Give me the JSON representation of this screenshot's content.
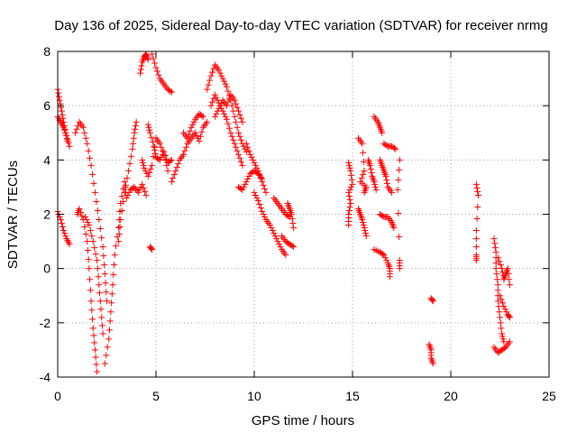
{
  "chart_data": {
    "type": "scatter",
    "title": "Day 136 of 2025, Sidereal Day-to-day VTEC variation (SDTVAR) for receiver nrmg",
    "xlabel": "GPS time / hours",
    "ylabel": "SDTVAR / TECUs",
    "xlim": [
      0,
      25
    ],
    "ylim": [
      -4,
      8
    ],
    "xticks": [
      "0",
      "5",
      "10",
      "15",
      "20",
      "25"
    ],
    "yticks": [
      "-4",
      "-2",
      "0",
      "2",
      "4",
      "6",
      "8"
    ],
    "grid": true,
    "marker": "+",
    "series": [
      {
        "name": "SDTVAR",
        "color": "#ff0000",
        "segments": [
          [
            [
              0.0,
              6.6
            ],
            [
              0.1,
              6.2
            ],
            [
              0.2,
              5.8
            ],
            [
              0.3,
              5.4
            ],
            [
              0.4,
              5.0
            ],
            [
              0.5,
              4.7
            ]
          ],
          [
            [
              0.0,
              5.6
            ],
            [
              0.15,
              5.4
            ],
            [
              0.3,
              5.2
            ],
            [
              0.45,
              4.9
            ],
            [
              0.6,
              4.5
            ]
          ],
          [
            [
              0.0,
              2.1
            ],
            [
              0.15,
              1.8
            ],
            [
              0.3,
              1.4
            ],
            [
              0.45,
              1.1
            ],
            [
              0.6,
              0.9
            ]
          ],
          [
            [
              0.9,
              5.0
            ],
            [
              1.1,
              5.4
            ],
            [
              1.3,
              5.2
            ],
            [
              1.5,
              4.6
            ],
            [
              1.7,
              3.8
            ],
            [
              1.9,
              2.8
            ],
            [
              2.1,
              1.8
            ],
            [
              2.3,
              0.8
            ],
            [
              2.4,
              -0.2
            ],
            [
              2.5,
              -1.2
            ]
          ],
          [
            [
              1.0,
              2.0
            ],
            [
              1.1,
              2.2
            ],
            [
              1.3,
              1.8
            ],
            [
              1.5,
              1.0
            ],
            [
              1.6,
              0.0
            ],
            [
              1.7,
              -1.2
            ],
            [
              1.8,
              -2.2
            ],
            [
              1.9,
              -3.0
            ],
            [
              2.0,
              -3.8
            ]
          ],
          [
            [
              1.4,
              1.9
            ],
            [
              1.6,
              1.6
            ],
            [
              1.8,
              1.0
            ],
            [
              2.0,
              0.3
            ],
            [
              2.1,
              -0.6
            ],
            [
              2.2,
              -1.5
            ],
            [
              2.3,
              -2.4
            ]
          ],
          [
            [
              2.4,
              -3.5
            ],
            [
              2.6,
              -2.6
            ],
            [
              2.7,
              -1.6
            ],
            [
              2.8,
              -0.6
            ],
            [
              2.9,
              0.5
            ],
            [
              3.1,
              1.5
            ],
            [
              3.2,
              2.4
            ],
            [
              3.4,
              3.2
            ],
            [
              3.5,
              2.6
            ],
            [
              3.7,
              2.9
            ],
            [
              3.9,
              3.0
            ],
            [
              4.1,
              2.8
            ],
            [
              4.3,
              3.1
            ],
            [
              4.5,
              2.7
            ]
          ],
          [
            [
              3.1,
              1.0
            ],
            [
              3.2,
              1.8
            ],
            [
              3.4,
              2.8
            ],
            [
              3.6,
              3.6
            ],
            [
              3.8,
              4.4
            ],
            [
              3.9,
              5.0
            ],
            [
              4.0,
              5.4
            ]
          ],
          [
            [
              4.2,
              7.2
            ],
            [
              4.3,
              7.6
            ],
            [
              4.4,
              7.8
            ],
            [
              4.5,
              7.9
            ],
            [
              4.6,
              7.7
            ]
          ],
          [
            [
              4.8,
              7.9
            ],
            [
              5.0,
              7.4
            ],
            [
              5.2,
              7.0
            ],
            [
              5.4,
              6.8
            ],
            [
              5.6,
              6.6
            ],
            [
              5.8,
              6.5
            ]
          ],
          [
            [
              4.6,
              5.3
            ],
            [
              4.7,
              5.0
            ],
            [
              4.9,
              4.5
            ],
            [
              5.0,
              4.1
            ],
            [
              5.2,
              4.0
            ],
            [
              5.4,
              4.3
            ],
            [
              5.6,
              3.9
            ],
            [
              5.8,
              4.0
            ]
          ],
          [
            [
              4.3,
              4.0
            ],
            [
              4.4,
              3.7
            ],
            [
              4.6,
              3.4
            ],
            [
              4.8,
              3.8
            ],
            [
              5.0,
              4.8
            ],
            [
              5.2,
              4.6
            ],
            [
              5.4,
              4.2
            ],
            [
              5.6,
              3.6
            ]
          ],
          [
            [
              4.7,
              0.8
            ],
            [
              4.8,
              0.7
            ]
          ],
          [
            [
              5.8,
              3.2
            ],
            [
              6.0,
              3.6
            ],
            [
              6.2,
              4.0
            ],
            [
              6.4,
              4.2
            ],
            [
              6.6,
              4.6
            ],
            [
              6.8,
              4.8
            ],
            [
              7.0,
              5.0
            ],
            [
              7.2,
              4.7
            ],
            [
              7.4,
              5.2
            ],
            [
              7.6,
              5.4
            ]
          ],
          [
            [
              6.4,
              5.0
            ],
            [
              6.6,
              4.8
            ],
            [
              6.8,
              5.2
            ],
            [
              7.0,
              5.5
            ],
            [
              7.2,
              5.7
            ],
            [
              7.4,
              5.6
            ]
          ],
          [
            [
              7.6,
              6.6
            ],
            [
              7.8,
              7.1
            ],
            [
              8.0,
              7.5
            ],
            [
              8.2,
              7.3
            ],
            [
              8.4,
              7.0
            ],
            [
              8.6,
              6.7
            ],
            [
              8.8,
              6.2
            ],
            [
              9.0,
              5.6
            ],
            [
              9.2,
              5.0
            ],
            [
              9.4,
              4.6
            ],
            [
              9.6,
              4.3
            ]
          ],
          [
            [
              7.8,
              6.0
            ],
            [
              8.0,
              6.4
            ],
            [
              8.2,
              6.1
            ],
            [
              8.4,
              5.8
            ],
            [
              8.6,
              5.5
            ],
            [
              8.8,
              5.0
            ],
            [
              9.0,
              4.6
            ],
            [
              9.2,
              4.2
            ],
            [
              9.4,
              3.8
            ]
          ],
          [
            [
              8.0,
              5.6
            ],
            [
              8.2,
              5.9
            ],
            [
              8.4,
              6.2
            ],
            [
              8.6,
              6.0
            ],
            [
              8.8,
              6.4
            ],
            [
              9.0,
              6.2
            ],
            [
              9.2,
              5.8
            ],
            [
              9.4,
              5.4
            ]
          ],
          [
            [
              9.2,
              3.0
            ],
            [
              9.4,
              2.9
            ],
            [
              9.6,
              3.2
            ],
            [
              9.8,
              3.5
            ],
            [
              10.0,
              3.6
            ],
            [
              10.2,
              3.5
            ],
            [
              10.4,
              3.3
            ]
          ],
          [
            [
              9.6,
              4.6
            ],
            [
              9.8,
              4.2
            ],
            [
              10.0,
              3.9
            ],
            [
              10.2,
              3.6
            ],
            [
              10.4,
              3.2
            ],
            [
              10.6,
              2.8
            ]
          ],
          [
            [
              10.0,
              2.8
            ],
            [
              10.2,
              2.5
            ],
            [
              10.4,
              2.1
            ],
            [
              10.6,
              1.8
            ],
            [
              10.8,
              1.6
            ],
            [
              11.0,
              1.3
            ],
            [
              11.2,
              1.0
            ],
            [
              11.4,
              0.7
            ],
            [
              11.6,
              0.5
            ]
          ],
          [
            [
              11.0,
              2.6
            ],
            [
              11.2,
              2.4
            ],
            [
              11.4,
              2.2
            ],
            [
              11.6,
              2.0
            ],
            [
              11.8,
              1.9
            ]
          ],
          [
            [
              11.4,
              1.2
            ],
            [
              11.6,
              1.0
            ],
            [
              11.8,
              0.9
            ],
            [
              12.0,
              0.8
            ]
          ],
          [
            [
              11.7,
              2.4
            ],
            [
              11.8,
              2.2
            ],
            [
              11.9,
              2.0
            ],
            [
              12.0,
              1.5
            ]
          ],
          [
            [
              14.8,
              3.9
            ],
            [
              14.9,
              3.6
            ],
            [
              15.0,
              3.1
            ],
            [
              14.8,
              2.8
            ],
            [
              14.9,
              2.4
            ],
            [
              14.8,
              2.0
            ],
            [
              14.8,
              1.6
            ]
          ],
          [
            [
              15.3,
              4.8
            ],
            [
              15.5,
              4.6
            ],
            [
              15.6,
              3.6
            ],
            [
              15.4,
              3.2
            ],
            [
              15.7,
              3.0
            ],
            [
              15.6,
              2.8
            ]
          ],
          [
            [
              15.3,
              2.2
            ],
            [
              15.4,
              2.0
            ],
            [
              15.5,
              1.8
            ],
            [
              15.6,
              1.5
            ],
            [
              15.7,
              1.2
            ]
          ],
          [
            [
              15.8,
              4.0
            ],
            [
              15.9,
              3.8
            ],
            [
              16.0,
              3.4
            ],
            [
              16.1,
              3.2
            ],
            [
              16.2,
              2.9
            ]
          ],
          [
            [
              16.1,
              5.6
            ],
            [
              16.3,
              5.4
            ],
            [
              16.4,
              5.2
            ],
            [
              16.5,
              5.0
            ]
          ],
          [
            [
              16.4,
              4.0
            ],
            [
              16.5,
              3.8
            ],
            [
              16.6,
              3.6
            ],
            [
              16.7,
              3.4
            ],
            [
              16.8,
              3.0
            ],
            [
              17.0,
              2.8
            ]
          ],
          [
            [
              16.4,
              2.0
            ],
            [
              16.6,
              1.9
            ],
            [
              16.8,
              1.9
            ],
            [
              17.0,
              1.7
            ],
            [
              17.1,
              1.5
            ]
          ],
          [
            [
              16.6,
              4.6
            ],
            [
              16.8,
              4.5
            ],
            [
              17.0,
              4.5
            ],
            [
              17.2,
              4.4
            ]
          ],
          [
            [
              16.1,
              0.7
            ],
            [
              16.4,
              0.6
            ],
            [
              16.6,
              0.5
            ],
            [
              16.8,
              0.2
            ],
            [
              16.9,
              0.0
            ],
            [
              16.9,
              -0.3
            ]
          ],
          [
            [
              17.4,
              4.0
            ],
            [
              17.3,
              2.9
            ],
            [
              17.4,
              0.3
            ],
            [
              17.4,
              0.0
            ]
          ],
          [
            [
              19.0,
              -1.1
            ],
            [
              19.1,
              -1.2
            ]
          ],
          [
            [
              18.9,
              -2.8
            ],
            [
              19.0,
              -3.0
            ],
            [
              19.0,
              -3.3
            ],
            [
              19.1,
              -3.5
            ]
          ],
          [
            [
              21.3,
              3.1
            ],
            [
              21.4,
              2.7
            ],
            [
              21.3,
              1.4
            ],
            [
              21.3,
              0.5
            ],
            [
              21.3,
              0.3
            ]
          ],
          [
            [
              22.2,
              1.1
            ],
            [
              22.3,
              0.6
            ],
            [
              22.3,
              0.0
            ],
            [
              22.4,
              -0.6
            ],
            [
              22.4,
              -1.2
            ],
            [
              22.5,
              -1.8
            ],
            [
              22.6,
              -2.4
            ],
            [
              22.7,
              -2.7
            ]
          ],
          [
            [
              22.2,
              -2.9
            ],
            [
              22.4,
              -3.1
            ],
            [
              22.6,
              -3.0
            ],
            [
              22.8,
              -2.9
            ],
            [
              23.0,
              -2.7
            ]
          ],
          [
            [
              22.4,
              0.4
            ],
            [
              22.6,
              0.0
            ],
            [
              22.7,
              -0.4
            ],
            [
              22.8,
              -0.2
            ],
            [
              22.9,
              0.0
            ],
            [
              23.0,
              -0.6
            ]
          ],
          [
            [
              22.5,
              -1.0
            ],
            [
              22.7,
              -1.4
            ],
            [
              22.9,
              -1.7
            ],
            [
              23.0,
              -1.8
            ]
          ]
        ]
      }
    ]
  }
}
